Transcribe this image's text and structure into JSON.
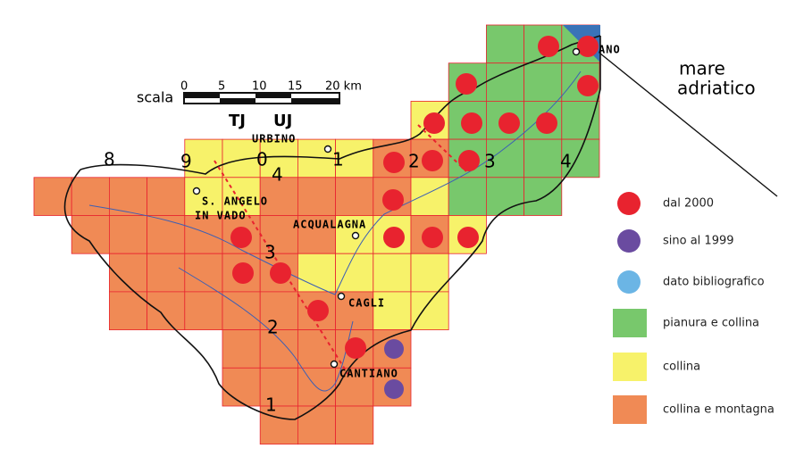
{
  "map": {
    "places": [
      "URBINO",
      "S. ANGELO",
      "IN VADO",
      "ACQUALAGNA",
      "CAGLI",
      "CANTIANO",
      "ANO"
    ],
    "sea": [
      "mare",
      "adriatico"
    ],
    "grid_labels": [
      "8",
      "9",
      "0",
      "1",
      "2",
      "3",
      "4"
    ],
    "zone_labels": [
      "TJ",
      "UJ"
    ],
    "row_labels": [
      "4",
      "3",
      "2",
      "1"
    ],
    "scale": {
      "title": "scala",
      "labels": [
        "0",
        "5",
        "10",
        "15",
        "20 km"
      ]
    }
  },
  "legend": [
    {
      "label": "dal 2000",
      "color": "#e8232f"
    },
    {
      "label": "sino al 1999",
      "color": "#6a4ba0"
    },
    {
      "label": "dato bibliografico",
      "color": "#6bb5e5"
    },
    {
      "label": "pianura e collina",
      "color": "#78c86c"
    },
    {
      "label": "collina",
      "color": "#f7f26a"
    },
    {
      "label": "collina e montagna",
      "color": "#f08a55"
    }
  ]
}
